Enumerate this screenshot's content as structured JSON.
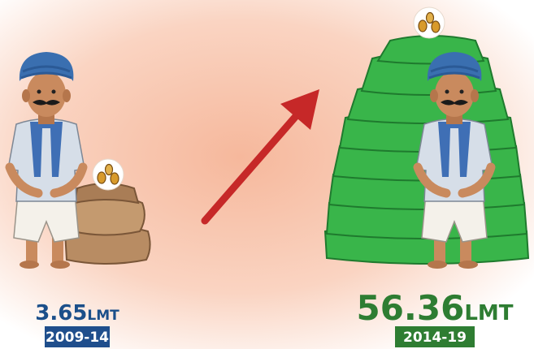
{
  "items": [
    {
      "value": "3.65",
      "unit": "LMT",
      "period": "2009-14"
    },
    {
      "value": "56.36",
      "unit": "LMT",
      "period": "2014-19"
    }
  ]
}
